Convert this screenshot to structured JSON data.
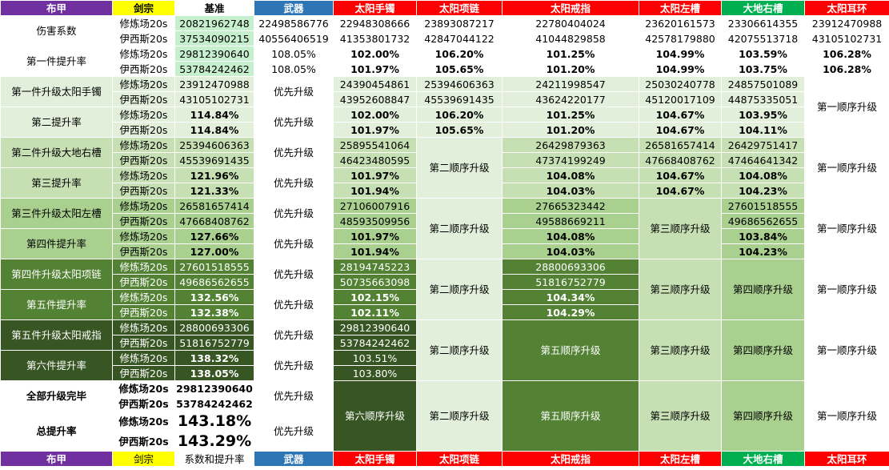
{
  "header": [
    "布甲",
    "剑宗",
    "基准",
    "武器",
    "太阳手镯",
    "太阳项链",
    "太阳戒指",
    "太阳左槽",
    "大地右槽",
    "太阳耳环"
  ],
  "footer": [
    "布甲",
    "剑宗",
    "系数和提升率",
    "武器",
    "太阳手镯",
    "太阳项链",
    "太阳戒指",
    "太阳左槽",
    "大地右槽",
    "太阳耳环"
  ],
  "label_a": "修炼场20s",
  "label_b": "伊西斯20s",
  "priority": "优先升级",
  "order": {
    "first": "第一顺序升级",
    "second": "第二顺序升级",
    "third": "第三顺序升级",
    "fourth": "第四顺序升级",
    "fifth": "第五顺序升级",
    "sixth": "第六顺序升级"
  },
  "dmg": {
    "title": "伤害系数",
    "a": [
      "20821962748",
      "22498586776",
      "22948308666",
      "23893087217",
      "22780404024",
      "23620161573",
      "23306614355",
      "23912470988"
    ],
    "b": [
      "37534090215",
      "40556406519",
      "41353801732",
      "42847044122",
      "41044829858",
      "42578179880",
      "42075513718",
      "43105102731"
    ]
  },
  "rate1": {
    "title": "第一件提升率",
    "a": [
      "29812390640",
      "108.05%",
      "102.00%",
      "106.20%",
      "101.25%",
      "104.99%",
      "103.59%",
      "106.28%"
    ],
    "b": [
      "53784242462",
      "108.05%",
      "101.97%",
      "105.65%",
      "101.20%",
      "104.99%",
      "103.75%",
      "106.28%"
    ]
  },
  "up1": {
    "title": "第一件升级太阳手镯",
    "rate_title": "第二提升率",
    "a_vals": [
      "23912470988",
      "24390454861",
      "25394606363",
      "24211998547",
      "25030240778",
      "24857501089"
    ],
    "b_vals": [
      "43105102731",
      "43952608847",
      "45539691435",
      "43624220177",
      "45120017109",
      "44875335051"
    ],
    "a_rates": [
      "114.84%",
      "102.00%",
      "106.20%",
      "101.25%",
      "104.67%",
      "103.95%"
    ],
    "b_rates": [
      "114.84%",
      "101.97%",
      "105.65%",
      "101.20%",
      "104.67%",
      "104.11%"
    ]
  },
  "up2": {
    "title": "第二件升级大地右槽",
    "rate_title": "第三提升率",
    "a_vals": [
      "25394606363",
      "25895541064",
      "26429879363",
      "26581657414",
      "26429751417"
    ],
    "b_vals": [
      "45539691435",
      "46423480595",
      "47374199249",
      "47668408762",
      "47464641342"
    ],
    "a_rates": [
      "121.96%",
      "101.97%",
      "104.08%",
      "104.67%",
      "104.08%"
    ],
    "b_rates": [
      "121.33%",
      "101.94%",
      "104.03%",
      "104.67%",
      "104.23%"
    ]
  },
  "up3": {
    "title": "第三件升级太阳左槽",
    "rate_title": "第四件提升率",
    "a_vals": [
      "26581657414",
      "27106007916",
      "27665323442",
      "27601518555"
    ],
    "b_vals": [
      "47668408762",
      "48593509956",
      "49588669211",
      "49686562655"
    ],
    "a_rates": [
      "127.66%",
      "101.97%",
      "104.08%",
      "103.84%"
    ],
    "b_rates": [
      "127.00%",
      "101.94%",
      "104.03%",
      "104.23%"
    ]
  },
  "up4": {
    "title": "第四件升级太阳项链",
    "rate_title": "第五件提升率",
    "a_vals": [
      "27601518555",
      "28194745223",
      "28800693306"
    ],
    "b_vals": [
      "49686562655",
      "50735663098",
      "51816752779"
    ],
    "a_rates": [
      "132.56%",
      "102.15%",
      "104.34%"
    ],
    "b_rates": [
      "132.38%",
      "102.11%",
      "104.29%"
    ]
  },
  "up5": {
    "title": "第五件升级太阳戒指",
    "rate_title": "第六件提升率",
    "a_vals": [
      "28800693306",
      "29812390640"
    ],
    "b_vals": [
      "51816752779",
      "53784242462"
    ],
    "a_rates": [
      "138.32%",
      "103.51%"
    ],
    "b_rates": [
      "138.05%",
      "103.80%"
    ]
  },
  "done": {
    "title": "全部升级完毕",
    "a": "29812390640",
    "b": "53784242462"
  },
  "total": {
    "title": "总提升率",
    "a": "143.18%",
    "b": "143.29%"
  }
}
